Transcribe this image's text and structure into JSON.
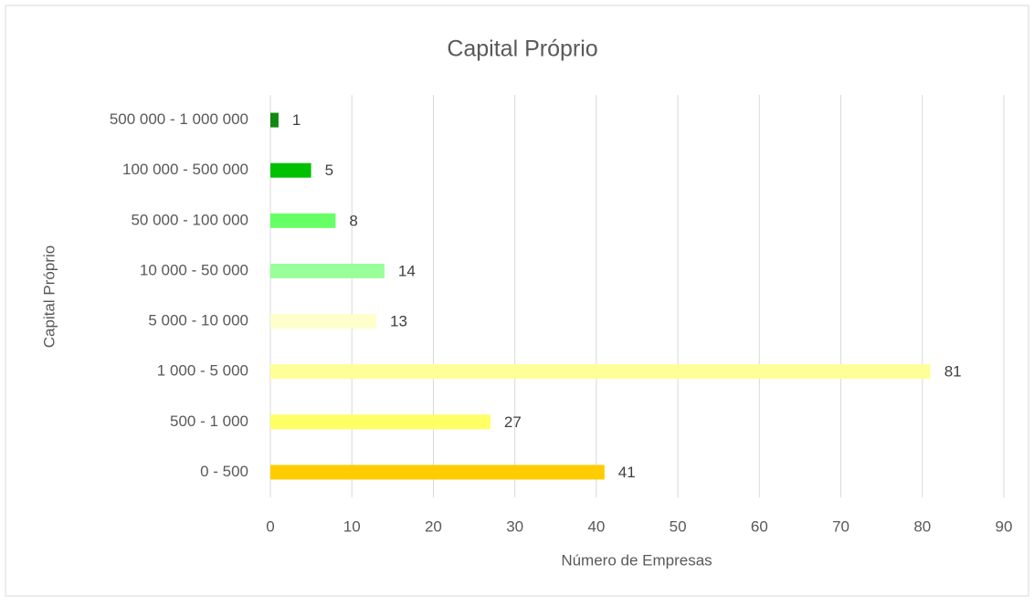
{
  "chart_data": {
    "type": "bar",
    "orientation": "horizontal",
    "title": "Capital Próprio",
    "x_label": "Número de Empresas",
    "y_label": "Capital Próprio",
    "categories": [
      "0 - 500",
      "500 - 1 000",
      "1 000 - 5 000",
      "5 000 - 10 000",
      "10 000 - 50 000",
      "50 000 - 100 000",
      "100 000 - 500 000",
      "500 000 - 1 000 000"
    ],
    "values": [
      41,
      27,
      81,
      13,
      14,
      8,
      5,
      1
    ],
    "colors": [
      "#ffcc00",
      "#ffff66",
      "#ffff99",
      "#ffffcc",
      "#99ff99",
      "#66ff66",
      "#00c000",
      "#108a10"
    ],
    "xlim": [
      0,
      90
    ],
    "xticks": [
      0,
      10,
      20,
      30,
      40,
      50,
      60,
      70,
      80,
      90
    ],
    "grid": true
  }
}
